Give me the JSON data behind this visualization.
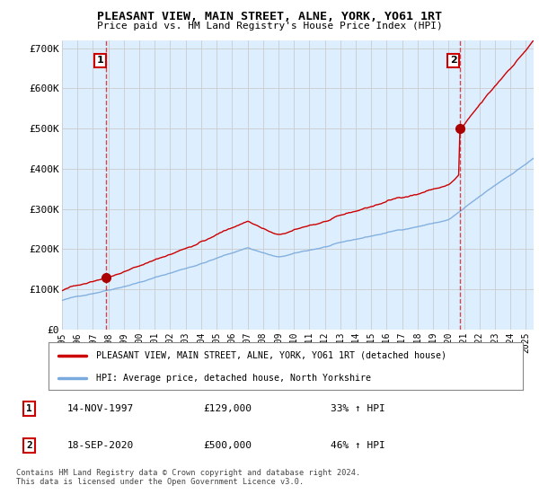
{
  "title": "PLEASANT VIEW, MAIN STREET, ALNE, YORK, YO61 1RT",
  "subtitle": "Price paid vs. HM Land Registry's House Price Index (HPI)",
  "ylabel_ticks": [
    "£0",
    "£100K",
    "£200K",
    "£300K",
    "£400K",
    "£500K",
    "£600K",
    "£700K"
  ],
  "ytick_values": [
    0,
    100000,
    200000,
    300000,
    400000,
    500000,
    600000,
    700000
  ],
  "ylim": [
    0,
    720000
  ],
  "xlim_start": 1995.0,
  "xlim_end": 2025.5,
  "sale1_x": 1997.87,
  "sale1_y": 129000,
  "sale2_x": 2020.72,
  "sale2_y": 500000,
  "sale1_date": "14-NOV-1997",
  "sale1_price": "£129,000",
  "sale1_hpi": "33% ↑ HPI",
  "sale2_date": "18-SEP-2020",
  "sale2_price": "£500,000",
  "sale2_hpi": "46% ↑ HPI",
  "line_color_red": "#cc0000",
  "line_color_blue": "#7aaadd",
  "dot_color": "#aa0000",
  "grid_color": "#cccccc",
  "bg_chart": "#ddeeff",
  "background_color": "#ffffff",
  "legend_label_red": "PLEASANT VIEW, MAIN STREET, ALNE, YORK, YO61 1RT (detached house)",
  "legend_label_blue": "HPI: Average price, detached house, North Yorkshire",
  "footer": "Contains HM Land Registry data © Crown copyright and database right 2024.\nThis data is licensed under the Open Government Licence v3.0.",
  "xtick_years": [
    1995,
    1996,
    1997,
    1998,
    1999,
    2000,
    2001,
    2002,
    2003,
    2004,
    2005,
    2006,
    2007,
    2008,
    2009,
    2010,
    2011,
    2012,
    2013,
    2014,
    2015,
    2016,
    2017,
    2018,
    2019,
    2020,
    2021,
    2022,
    2023,
    2024,
    2025
  ]
}
